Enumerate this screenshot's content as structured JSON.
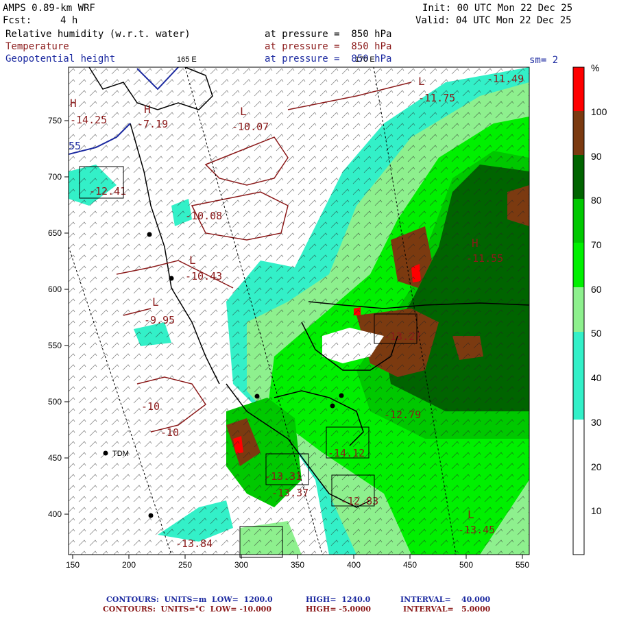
{
  "header": {
    "model": "AMPS 0.89-km WRF",
    "forecast_label": "Fcst:",
    "forecast_hours": "4 h",
    "init": "Init: 00 UTC Mon 22 Dec 25",
    "valid": "Valid: 04 UTC Mon 22 Dec 25",
    "field1": "Relative humidity (w.r.t. water)",
    "field2": "Temperature",
    "field3": "Geopotential height",
    "pressure1": "at pressure =  850 hPa",
    "pressure2": "at pressure =  850 hPa",
    "pressure3": "at pressure =  850 hPa",
    "smoothing": "sm= 2",
    "lon_label_165": "165 E",
    "lon_label_170": "170 E"
  },
  "axes": {
    "x_ticks": [
      "150",
      "200",
      "250",
      "300",
      "350",
      "400",
      "450",
      "500",
      "550"
    ],
    "y_ticks": [
      "750",
      "700",
      "650",
      "600",
      "550",
      "500",
      "450",
      "400"
    ]
  },
  "colorbar": {
    "unit": "%",
    "levels": [
      "10",
      "20",
      "30",
      "40",
      "50",
      "60",
      "70",
      "80",
      "90",
      "100"
    ],
    "colors": [
      "#ffffff",
      "#ffffff",
      "#ffffff",
      "#33f0c8",
      "#8ef08e",
      "#00f000",
      "#00c800",
      "#006400",
      "#7b3a10",
      "#ff0000"
    ]
  },
  "map_labels": {
    "tdm": "TDM",
    "temperature": [
      "-11.49",
      "-11.75",
      "-7.19",
      "-10.07",
      "-10.08",
      "-10.43",
      "-9.95",
      "-10",
      "-10",
      "-12.79",
      "-13.45",
      "-13.84",
      "-11.55",
      "-13.37",
      "-12.41",
      "-14.12",
      "-12.83",
      "-13.31",
      "-13.27",
      "-14.25"
    ],
    "highs_lows": [
      "L",
      "L",
      "H",
      "H",
      "L",
      "L",
      "H",
      "L"
    ],
    "geopotential": [
      "55"
    ]
  },
  "footer": {
    "line1_label": "CONTOURS:  UNITS=m  LOW=  1200.0",
    "line1_high": "HIGH=  1240.0",
    "line1_interval": "INTERVAL=    40.000",
    "line2_label": "CONTOURS:  UNITS=°C  LOW= -10.000",
    "line2_high": "HIGH= -5.0000",
    "line2_interval": "INTERVAL=   5.0000"
  },
  "colors": {
    "temperature_contour": "#8b1a1a",
    "height_contour": "#1c2aa0"
  }
}
